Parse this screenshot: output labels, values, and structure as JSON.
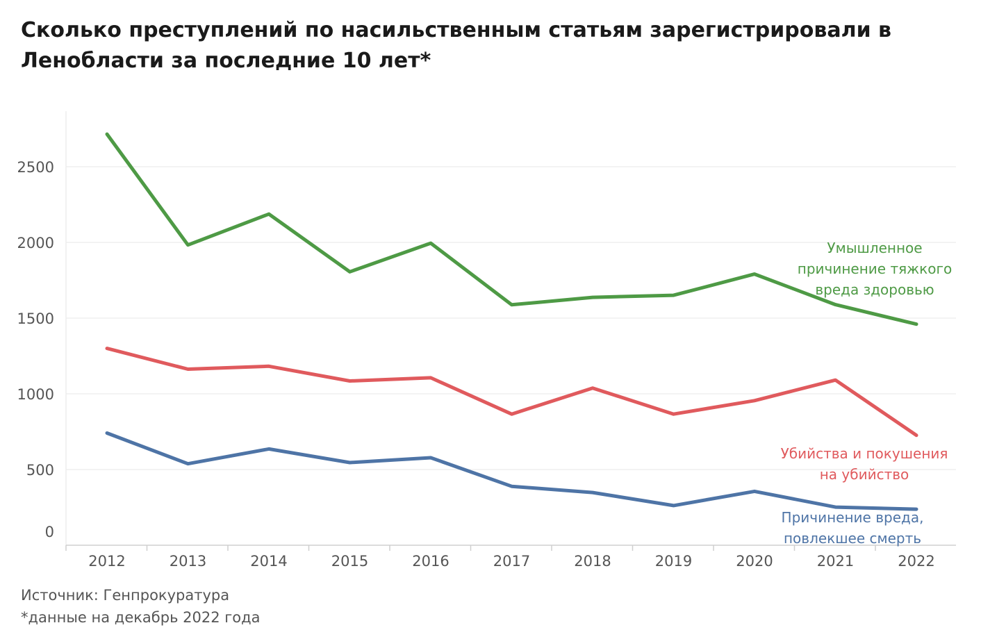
{
  "chart_data": {
    "type": "line",
    "title": "Сколько преступлений по насильственным статьям зарегистрировали в Ленобласти за последние 10 лет*",
    "xlabel": "",
    "ylabel": "",
    "x": [
      "2012",
      "2013",
      "2014",
      "2015",
      "2016",
      "2017",
      "2018",
      "2019",
      "2020",
      "2021",
      "2022"
    ],
    "yticks": [
      "0",
      "500",
      "1000",
      "1500",
      "2000",
      "2500"
    ],
    "ylim": [
      0,
      2900
    ],
    "grid": true,
    "series": [
      {
        "name": "Умышленное причинение тяжкого вреда здоровью",
        "label_lines": [
          "Умышленное",
          "причинение тяжкого",
          "вреда здоровью"
        ],
        "color": "#4e9a45",
        "values": [
          2715,
          1983,
          2187,
          1806,
          1995,
          1588,
          1637,
          1651,
          1791,
          1589,
          1460
        ]
      },
      {
        "name": "Убийства и покушения на убийство",
        "label_lines": [
          "Убийства и покушения",
          "на убийство"
        ],
        "color": "#e05a5d",
        "values": [
          1300,
          1163,
          1182,
          1085,
          1106,
          866,
          1038,
          866,
          955,
          1091,
          726
        ]
      },
      {
        "name": "Причинение вреда, повлекшее смерть",
        "label_lines": [
          "Причинение вреда,",
          "повлекшее смерть"
        ],
        "color": "#4e74a6",
        "values": [
          741,
          538,
          636,
          546,
          578,
          389,
          348,
          262,
          356,
          252,
          238
        ]
      }
    ]
  },
  "footer": {
    "source": "Источник: Генпрокуратура",
    "note": "*данные на декабрь 2022 года"
  }
}
